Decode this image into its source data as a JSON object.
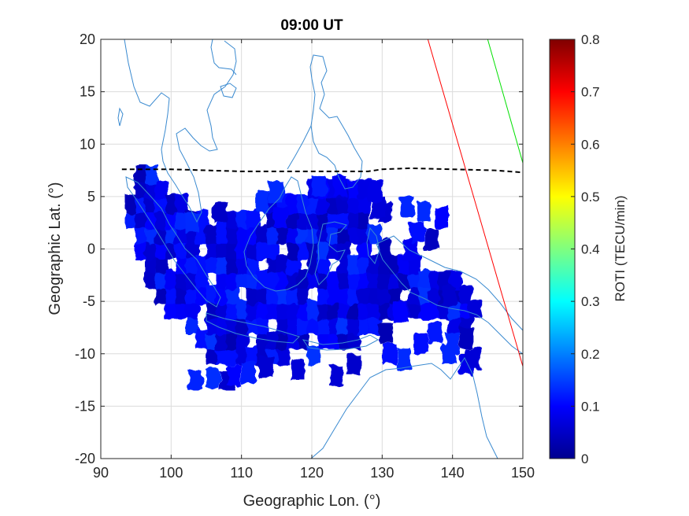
{
  "chart_data": {
    "type": "heatmap",
    "title": "09:00 UT",
    "xlabel": "Geographic Lon. (°)",
    "ylabel": "Geographic Lat. (°)",
    "xlim": [
      90,
      150
    ],
    "ylim": [
      -20,
      20
    ],
    "xticks": [
      90,
      100,
      110,
      120,
      130,
      140,
      150
    ],
    "yticks": [
      -20,
      -15,
      -10,
      -5,
      0,
      5,
      10,
      15,
      20
    ],
    "grid": true,
    "colorbar": {
      "label": "ROTI (TECU/min)",
      "range": [
        0,
        0.8
      ],
      "ticks": [
        0,
        0.1,
        0.2,
        0.3,
        0.4,
        0.5,
        0.6,
        0.7,
        0.8
      ],
      "colormap": "jet"
    },
    "magnetic_equator": {
      "style": "dashed",
      "color": "#000000",
      "points": [
        [
          93,
          7.6
        ],
        [
          100,
          7.6
        ],
        [
          110,
          7.4
        ],
        [
          118,
          7.4
        ],
        [
          126,
          7.4
        ],
        [
          128,
          7.4
        ],
        [
          130,
          7.6
        ],
        [
          134,
          7.7
        ],
        [
          140,
          7.6
        ],
        [
          146,
          7.5
        ],
        [
          150,
          7.3
        ]
      ]
    },
    "lines": [
      {
        "color": "#ff0000",
        "points": [
          [
            136.5,
            20
          ],
          [
            150,
            -11.2
          ]
        ]
      },
      {
        "color": "#00e000",
        "points": [
          [
            145,
            20
          ],
          [
            150,
            8.2
          ]
        ]
      }
    ],
    "roti_region": {
      "typical_value": 0.08,
      "value_range": [
        0.04,
        0.14
      ],
      "cell_size_deg": 1.8,
      "main_polygon": [
        [
          93,
          7.5
        ],
        [
          96,
          7.5
        ],
        [
          100,
          4.5
        ],
        [
          104,
          4
        ],
        [
          106,
          4
        ],
        [
          110,
          4
        ],
        [
          113,
          4.5
        ],
        [
          115,
          5
        ],
        [
          117,
          4.5
        ],
        [
          119,
          7
        ],
        [
          122,
          6.5
        ],
        [
          125,
          6
        ],
        [
          127,
          6
        ],
        [
          127,
          3
        ],
        [
          128,
          1.5
        ],
        [
          131,
          1
        ],
        [
          133,
          -1
        ],
        [
          135,
          -2
        ],
        [
          137,
          -2
        ],
        [
          140,
          -3
        ],
        [
          142,
          -4
        ],
        [
          143,
          -5
        ],
        [
          143,
          -7
        ],
        [
          141,
          -7.5
        ],
        [
          137,
          -7
        ],
        [
          133,
          -7
        ],
        [
          131,
          -6.5
        ],
        [
          129,
          -6
        ],
        [
          128,
          -8
        ],
        [
          125,
          -9
        ],
        [
          123,
          -9.5
        ],
        [
          120,
          -10.2
        ],
        [
          117,
          -10.5
        ],
        [
          112,
          -11
        ],
        [
          110,
          -11.5
        ],
        [
          104,
          -11.5
        ],
        [
          104,
          -10
        ],
        [
          103,
          -9
        ],
        [
          99,
          -6
        ],
        [
          96,
          -3
        ],
        [
          94,
          0
        ],
        [
          93,
          3
        ]
      ],
      "blobs": [
        [
          103.5,
          -12.5
        ],
        [
          106,
          -12.3
        ],
        [
          108,
          -12.5
        ],
        [
          109,
          -12
        ],
        [
          111,
          -11.8
        ],
        [
          113.5,
          -11.3
        ],
        [
          118,
          -11.5
        ],
        [
          123.5,
          -12
        ],
        [
          126,
          -11
        ],
        [
          130.5,
          -8
        ],
        [
          131,
          -10
        ],
        [
          133,
          -10.5
        ],
        [
          135.5,
          -9
        ],
        [
          137.5,
          -8
        ],
        [
          140,
          -9
        ],
        [
          142,
          -8.5
        ],
        [
          142,
          -11
        ],
        [
          143,
          -10.5
        ],
        [
          139.5,
          -10
        ],
        [
          132.5,
          -6
        ],
        [
          139.5,
          -4.5
        ],
        [
          137,
          1
        ],
        [
          134,
          0
        ],
        [
          130.5,
          3.5
        ],
        [
          133.5,
          4
        ],
        [
          136,
          3.5
        ],
        [
          138.5,
          3
        ],
        [
          135,
          1.5
        ],
        [
          129.5,
          4
        ],
        [
          129,
          5.5
        ],
        [
          124,
          6
        ],
        [
          121,
          6
        ],
        [
          115,
          5.5
        ],
        [
          113,
          4.5
        ],
        [
          115.5,
          3
        ],
        [
          107,
          3.5
        ],
        [
          103,
          2.5
        ]
      ]
    },
    "coastline_color": "#3a8ad0"
  }
}
